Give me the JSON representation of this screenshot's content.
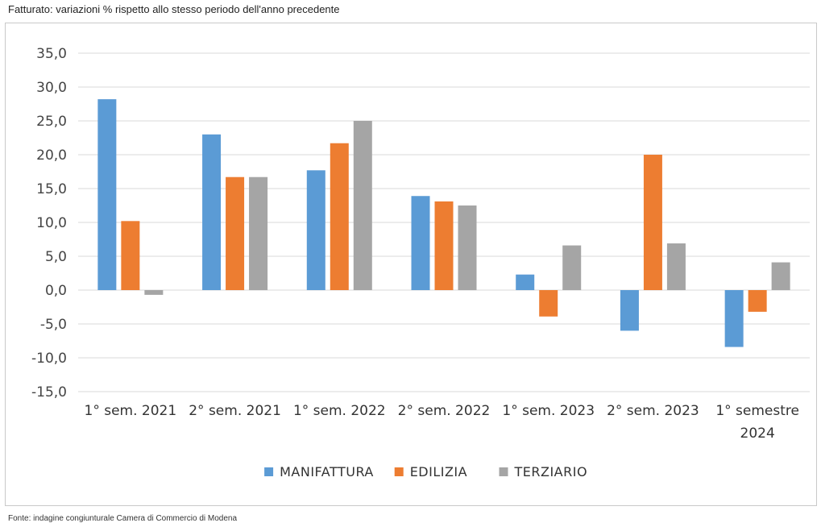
{
  "header_title": "Fatturato: variazioni % rispetto allo stesso periodo dell'anno precedente",
  "source_note": "Fonte: indagine congiunturale Camera di Commercio di Modena",
  "chart_data": {
    "type": "bar",
    "title": "",
    "xlabel": "",
    "ylabel": "",
    "ylim": [
      -15,
      35
    ],
    "yticks": [
      35,
      30,
      25,
      20,
      15,
      10,
      5,
      0,
      -5,
      -10,
      -15
    ],
    "ytick_labels": [
      "35,0",
      "30,0",
      "25,0",
      "20,0",
      "15,0",
      "10,0",
      "5,0",
      "0,0",
      "-5,0",
      "-10,0",
      "-15,0"
    ],
    "grid": true,
    "legend_position": "bottom",
    "categories": [
      [
        "1° sem. 2021"
      ],
      [
        "2° sem. 2021"
      ],
      [
        "1° sem. 2022"
      ],
      [
        "2° sem. 2022"
      ],
      [
        "1° sem. 2023"
      ],
      [
        "2° sem. 2023"
      ],
      [
        "1° semestre",
        "2024"
      ]
    ],
    "series": [
      {
        "name": "MANIFATTURA",
        "color": "#5b9bd5",
        "values": [
          28.2,
          23.0,
          17.7,
          13.9,
          2.3,
          -6.0,
          -8.4
        ]
      },
      {
        "name": "EDILIZIA",
        "color": "#ed7d31",
        "values": [
          10.2,
          16.7,
          21.7,
          13.1,
          -3.9,
          20.0,
          -3.2
        ]
      },
      {
        "name": "TERZIARIO",
        "color": "#a5a5a5",
        "values": [
          -0.7,
          16.7,
          25.0,
          12.5,
          6.6,
          6.9,
          4.1
        ]
      }
    ]
  }
}
